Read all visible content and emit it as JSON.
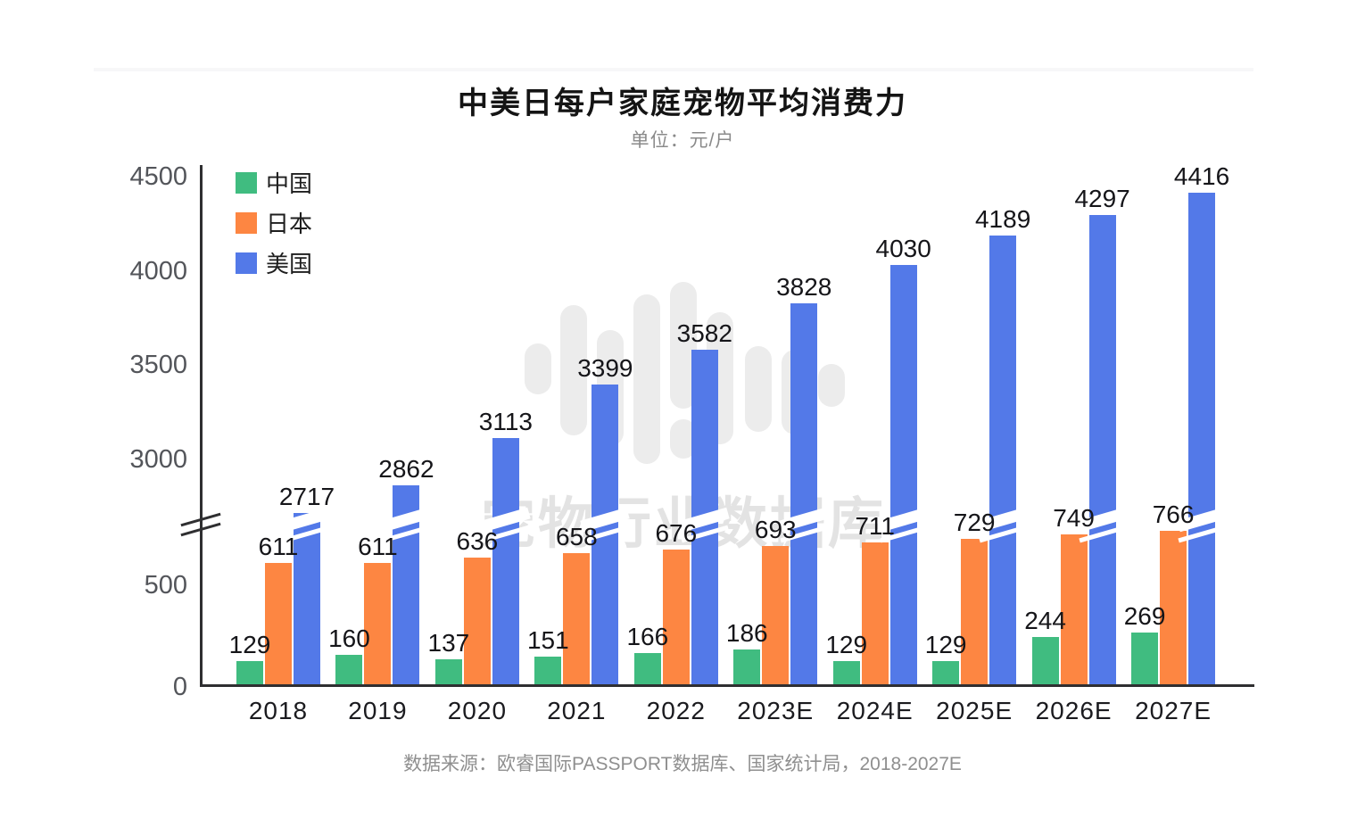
{
  "header": {
    "title": "中美日每户家庭宠物平均消费力",
    "subtitle": "单位：元/户"
  },
  "footer": {
    "source": "数据来源：欧睿国际PASSPORT数据库、国家统计局，2018-2027E"
  },
  "watermark": {
    "text": "宠物行业数据库",
    "logo_icon": "waveform-bars-logo",
    "color": "#ececec"
  },
  "colors": {
    "china_green": "#40BC80",
    "japan_orange": "#FD8642",
    "usa_blue": "#5379E8",
    "axis": "#2f2f31",
    "tick_text": "#53555a",
    "label_text": "#151519",
    "title_text": "#141414",
    "muted_text": "#8f8f8f"
  },
  "chart_data": {
    "type": "bar",
    "title": "中美日每户家庭宠物平均消费力",
    "subtitle_unit": "单位：元/户",
    "categories": [
      "2018",
      "2019",
      "2020",
      "2021",
      "2022",
      "2023E",
      "2024E",
      "2025E",
      "2026E",
      "2027E"
    ],
    "series": [
      {
        "name": "中国",
        "color": "#40BC80",
        "values": [
          129,
          160,
          137,
          151,
          166,
          186,
          129,
          129,
          244,
          269
        ]
      },
      {
        "name": "日本",
        "color": "#FD8642",
        "values": [
          611,
          611,
          636,
          658,
          676,
          693,
          711,
          729,
          749,
          766
        ]
      },
      {
        "name": "美国",
        "color": "#5379E8",
        "values": [
          2717,
          2862,
          3113,
          3399,
          3582,
          3828,
          4030,
          4189,
          4297,
          4416
        ]
      }
    ],
    "yticks": [
      0,
      500,
      3000,
      3500,
      4000,
      4500
    ],
    "axis_break": {
      "between": [
        500,
        3000
      ]
    },
    "ylabel": "",
    "xlabel": "",
    "grid": false,
    "legend_position": "top-left",
    "data_labels": true
  }
}
